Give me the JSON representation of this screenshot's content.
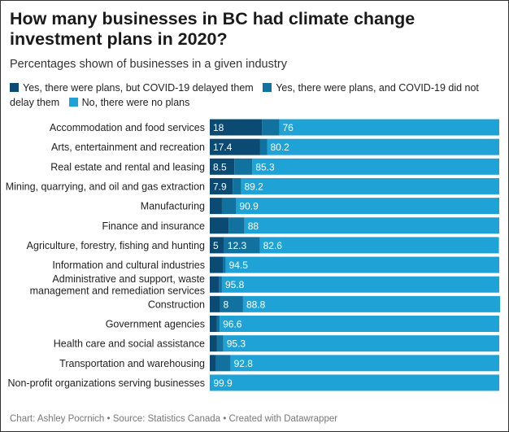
{
  "chart_data": {
    "type": "bar",
    "orientation": "horizontal",
    "stacked": true,
    "title": "How many businesses in BC had climate change investment plans in 2020?",
    "subtitle": "Percentages shown of businesses in a given industry",
    "xlim": [
      0,
      100
    ],
    "grid": false,
    "legend_position": "top-left",
    "categories": [
      [
        "Accommodation and food services"
      ],
      [
        "Arts, entertainment and recreation"
      ],
      [
        "Real estate and rental and leasing"
      ],
      [
        "Mining, quarrying, and oil and gas extraction"
      ],
      [
        "Manufacturing"
      ],
      [
        "Finance and insurance"
      ],
      [
        "Agriculture, forestry, fishing and hunting"
      ],
      [
        "Information and cultural industries"
      ],
      [
        "Administrative and support, waste",
        "management and remediation services"
      ],
      [
        "Construction"
      ],
      [
        "Government agencies"
      ],
      [
        "Health care and social assistance"
      ],
      [
        "Transportation and warehousing"
      ],
      [
        "Non-profit organizations serving businesses"
      ]
    ],
    "series": [
      {
        "name": "Yes, there were plans, but COVID-19 delayed them",
        "color": "#0b4b73",
        "values": [
          18,
          17.4,
          8.5,
          7.9,
          4.2,
          6.5,
          5,
          4.5,
          3.2,
          3.5,
          2.5,
          2.5,
          2.2,
          0.1
        ],
        "labels": [
          "18",
          "17.4",
          "8.5",
          "7.9",
          "",
          "",
          "5",
          "",
          "",
          "",
          "",
          "",
          "",
          ""
        ]
      },
      {
        "name": "Yes, there were plans, and COVID-19 did not delay them",
        "color": "#12729f",
        "values": [
          6,
          2.4,
          6.2,
          2.9,
          4.9,
          5.5,
          12.3,
          1,
          1,
          8,
          0.9,
          2.2,
          5,
          0
        ],
        "labels": [
          "",
          "",
          "",
          "",
          "",
          "",
          "12.3",
          "",
          "",
          "8",
          "",
          "",
          "",
          ""
        ]
      },
      {
        "name": "No, there were no plans",
        "color": "#1fa3d6",
        "values": [
          76,
          80.2,
          85.3,
          89.2,
          90.9,
          88,
          82.6,
          94.5,
          95.8,
          88.8,
          96.6,
          95.3,
          92.8,
          99.9
        ],
        "labels": [
          "76",
          "80.2",
          "85.3",
          "89.2",
          "90.9",
          "88",
          "82.6",
          "94.5",
          "95.8",
          "88.8",
          "96.6",
          "95.3",
          "92.8",
          "99.9"
        ]
      }
    ]
  },
  "footer": "Chart: Ashley Pocrnich • Source: Statistics Canada • Created with Datawrapper"
}
